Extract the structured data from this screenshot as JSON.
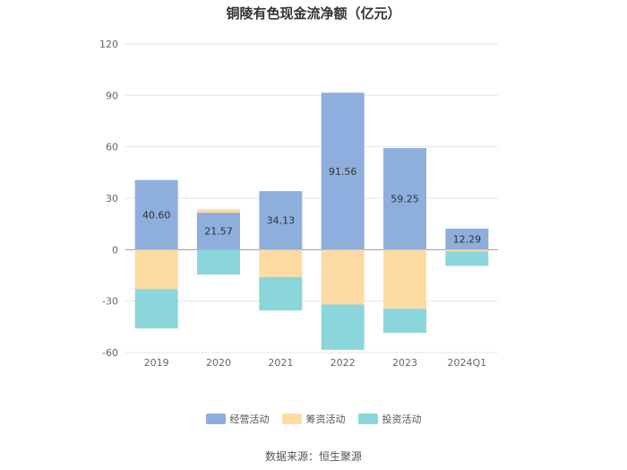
{
  "chart_data": {
    "type": "bar",
    "stacked": true,
    "title": "铜陵有色现金流净额（亿元）",
    "categories": [
      "2019",
      "2020",
      "2021",
      "2022",
      "2023",
      "2024Q1"
    ],
    "series": [
      {
        "name": "经营活动",
        "color": "#8eaedc",
        "values": [
          40.6,
          21.57,
          34.13,
          91.56,
          59.25,
          12.29
        ],
        "show_labels": true
      },
      {
        "name": "筹资活动",
        "color": "#fddba3",
        "values": [
          -23.0,
          2.0,
          -16.0,
          -32.0,
          -34.5,
          -1.0
        ],
        "show_labels": false
      },
      {
        "name": "投资活动",
        "color": "#8ad6da",
        "values": [
          -23.0,
          -14.5,
          -19.5,
          -26.5,
          -14.0,
          -8.5
        ],
        "show_labels": false
      }
    ],
    "yticks": [
      120,
      90,
      60,
      30,
      0,
      -30,
      -60
    ],
    "ylim": [
      -60,
      120
    ],
    "grid": true,
    "legend_position": "bottom"
  },
  "source": "数据来源：恒生聚源"
}
